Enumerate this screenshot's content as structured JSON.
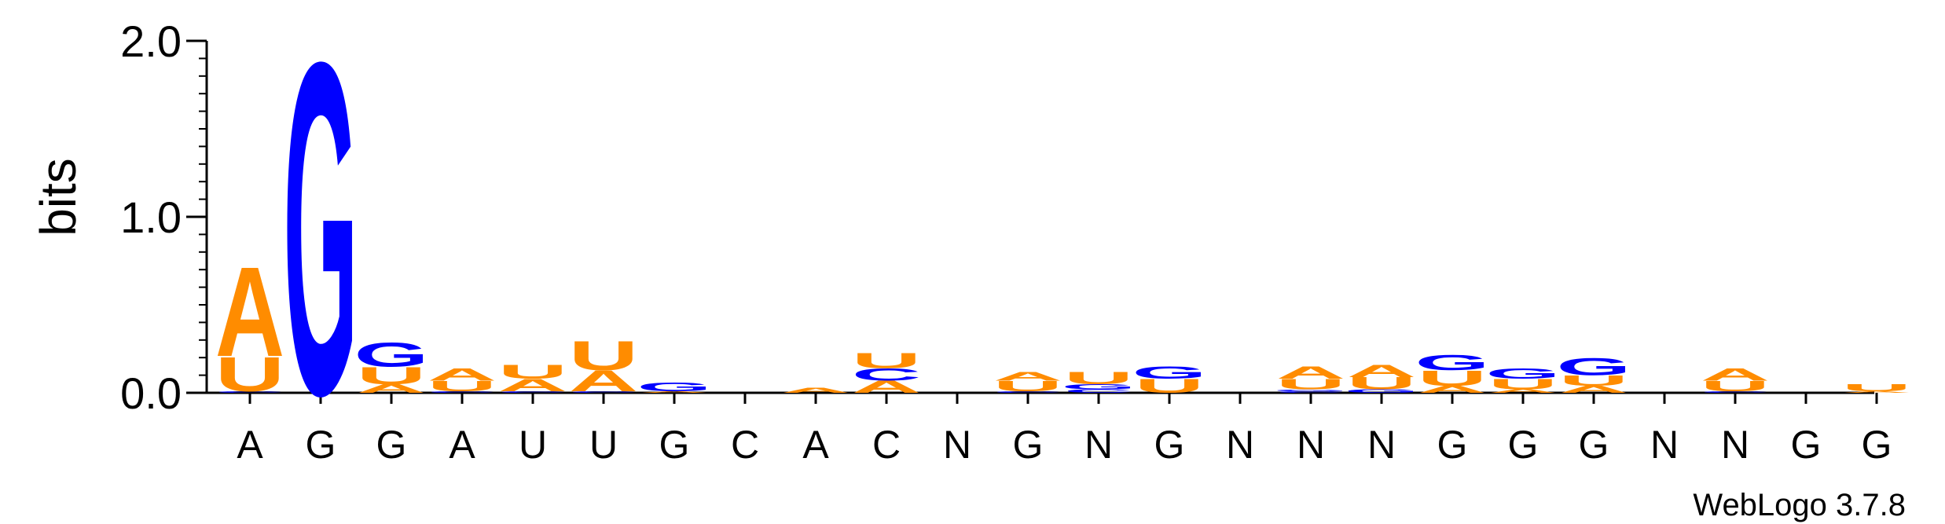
{
  "chart_data": {
    "type": "sequence-logo",
    "ylabel": "bits",
    "ylim": [
      0,
      2
    ],
    "y_ticks": [
      {
        "value": 0,
        "label": "0.0"
      },
      {
        "value": 1,
        "label": "1.0"
      },
      {
        "value": 2,
        "label": "2.0"
      }
    ],
    "colors": {
      "A": "#ff8c00",
      "U": "#ff8c00",
      "G": "#0000ff",
      "C": "#0000ff",
      "axis": "#000000"
    },
    "positions": [
      {
        "label": "A",
        "stack": [
          [
            "C",
            0.01
          ],
          [
            "U",
            0.2
          ],
          [
            "A",
            0.52
          ]
        ]
      },
      {
        "label": "G",
        "stack": [
          [
            "G",
            1.93
          ]
        ]
      },
      {
        "label": "G",
        "stack": [
          [
            "A",
            0.05
          ],
          [
            "U",
            0.1
          ],
          [
            "G",
            0.14
          ]
        ]
      },
      {
        "label": "A",
        "stack": [
          [
            "C",
            0.01
          ],
          [
            "U",
            0.06
          ],
          [
            "A",
            0.07
          ]
        ]
      },
      {
        "label": "U",
        "stack": [
          [
            "C",
            0.01
          ],
          [
            "A",
            0.07
          ],
          [
            "U",
            0.08
          ]
        ]
      },
      {
        "label": "U",
        "stack": [
          [
            "C",
            0.01
          ],
          [
            "A",
            0.12
          ],
          [
            "U",
            0.17
          ]
        ]
      },
      {
        "label": "G",
        "stack": [
          [
            "A",
            0.01
          ],
          [
            "G",
            0.05
          ]
        ]
      },
      {
        "label": "C",
        "stack": []
      },
      {
        "label": "A",
        "stack": [
          [
            "A",
            0.03
          ]
        ]
      },
      {
        "label": "C",
        "stack": [
          [
            "A",
            0.07
          ],
          [
            "C",
            0.07
          ],
          [
            "U",
            0.09
          ]
        ]
      },
      {
        "label": "N",
        "stack": []
      },
      {
        "label": "G",
        "stack": [
          [
            "C",
            0.01
          ],
          [
            "U",
            0.06
          ],
          [
            "A",
            0.05
          ]
        ]
      },
      {
        "label": "N",
        "stack": [
          [
            "C",
            0.02
          ],
          [
            "G",
            0.03
          ],
          [
            "U",
            0.07
          ]
        ]
      },
      {
        "label": "G",
        "stack": [
          [
            "U",
            0.08
          ],
          [
            "G",
            0.07
          ]
        ]
      },
      {
        "label": "N",
        "stack": []
      },
      {
        "label": "N",
        "stack": [
          [
            "C",
            0.01
          ],
          [
            "G",
            0.01
          ],
          [
            "U",
            0.06
          ],
          [
            "A",
            0.07
          ]
        ]
      },
      {
        "label": "N",
        "stack": [
          [
            "G",
            0.02
          ],
          [
            "U",
            0.07
          ],
          [
            "A",
            0.07
          ]
        ]
      },
      {
        "label": "G",
        "stack": [
          [
            "A",
            0.04
          ],
          [
            "U",
            0.09
          ],
          [
            "G",
            0.09
          ]
        ]
      },
      {
        "label": "G",
        "stack": [
          [
            "A",
            0.02
          ],
          [
            "U",
            0.06
          ],
          [
            "G",
            0.06
          ]
        ]
      },
      {
        "label": "G",
        "stack": [
          [
            "A",
            0.04
          ],
          [
            "U",
            0.06
          ],
          [
            "G",
            0.1
          ]
        ]
      },
      {
        "label": "N",
        "stack": []
      },
      {
        "label": "N",
        "stack": [
          [
            "C",
            0.01
          ],
          [
            "U",
            0.06
          ],
          [
            "A",
            0.07
          ]
        ]
      },
      {
        "label": "G",
        "stack": []
      },
      {
        "label": "G",
        "stack": [
          [
            "A",
            0.01
          ],
          [
            "U",
            0.04
          ]
        ]
      }
    ]
  },
  "footer": {
    "credit": "WebLogo 3.7.8"
  }
}
